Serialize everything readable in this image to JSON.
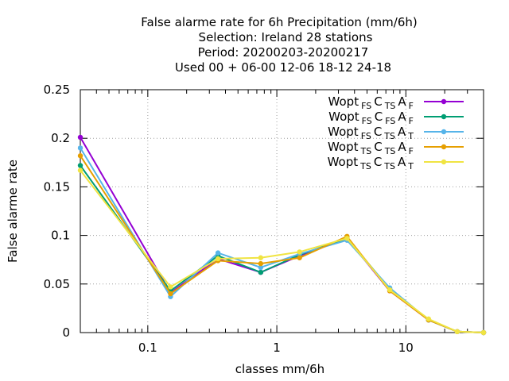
{
  "chart_data": {
    "type": "line",
    "title_lines": [
      "False alarme rate  for 6h Precipitation (mm/6h)",
      "Selection: Ireland     28 stations",
      "Period: 20200203-20200217",
      "Used  00 + 06-00 12-06 18-12 24-18"
    ],
    "xlabel": "classes mm/6h",
    "ylabel": "False alarme rate",
    "x_scale": "log",
    "xlim": [
      0.03,
      40
    ],
    "ylim": [
      0,
      0.25
    ],
    "x_ticks": [
      {
        "value": 0.1,
        "label": "0.1"
      },
      {
        "value": 1,
        "label": "1"
      },
      {
        "value": 10,
        "label": "10"
      }
    ],
    "y_ticks": [
      {
        "value": 0,
        "label": "0"
      },
      {
        "value": 0.05,
        "label": "0.05"
      },
      {
        "value": 0.1,
        "label": "0.1"
      },
      {
        "value": 0.15,
        "label": "0.15"
      },
      {
        "value": 0.2,
        "label": "0.2"
      },
      {
        "value": 0.25,
        "label": "0.25"
      }
    ],
    "grid": true,
    "legend_position": "top-right",
    "x": [
      0.03,
      0.15,
      0.35,
      0.75,
      1.5,
      3.5,
      7.5,
      15,
      25,
      40
    ],
    "series": [
      {
        "name": "Wopt_FS C_TS A_F",
        "label": [
          "Wopt",
          "FS",
          "C",
          "TS",
          "A",
          "F"
        ],
        "color": "#9400d3",
        "marker": "circle",
        "values": [
          0.201,
          0.041,
          0.076,
          0.062,
          0.079,
          0.097,
          0.043,
          0.013,
          0.001,
          0.0
        ]
      },
      {
        "name": "Wopt_FS C_FS A_F",
        "label": [
          "Wopt",
          "FS",
          "C",
          "FS",
          "A",
          "F"
        ],
        "color": "#009e73",
        "marker": "circle",
        "values": [
          0.172,
          0.043,
          0.079,
          0.062,
          0.08,
          0.097,
          0.045,
          0.013,
          0.001,
          0.0
        ]
      },
      {
        "name": "Wopt_FS C_TS A_T",
        "label": [
          "Wopt",
          "FS",
          "C",
          "TS",
          "A",
          "T"
        ],
        "color": "#56b4e9",
        "marker": "circle",
        "values": [
          0.19,
          0.037,
          0.082,
          0.067,
          0.081,
          0.095,
          0.046,
          0.013,
          0.001,
          0.0
        ]
      },
      {
        "name": "Wopt_TS C_TS A_F",
        "label": [
          "Wopt",
          "TS",
          "C",
          "TS",
          "A",
          "F"
        ],
        "color": "#e69f00",
        "marker": "circle",
        "values": [
          0.182,
          0.04,
          0.074,
          0.071,
          0.077,
          0.099,
          0.043,
          0.013,
          0.001,
          0.0
        ]
      },
      {
        "name": "Wopt_TS C_TS A_T",
        "label": [
          "Wopt",
          "TS",
          "C",
          "TS",
          "A",
          "T"
        ],
        "color": "#f0e442",
        "marker": "circle",
        "values": [
          0.167,
          0.047,
          0.076,
          0.077,
          0.083,
          0.097,
          0.044,
          0.014,
          0.001,
          0.0
        ]
      }
    ]
  }
}
